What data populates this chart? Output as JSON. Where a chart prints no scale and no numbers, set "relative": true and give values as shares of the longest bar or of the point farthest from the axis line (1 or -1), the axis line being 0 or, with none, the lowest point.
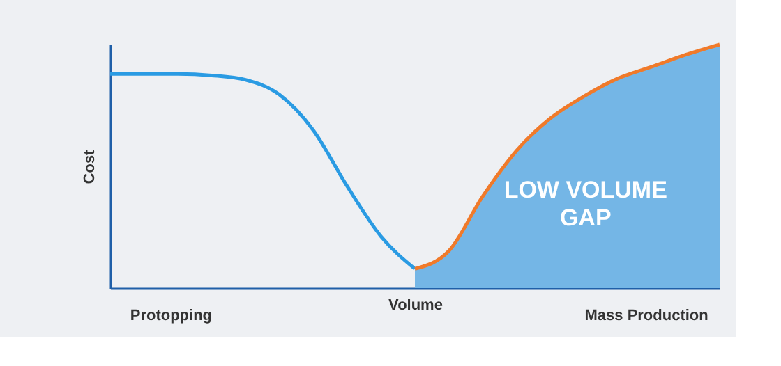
{
  "chart_data": {
    "type": "line",
    "relative": true,
    "xlabel": "Volume",
    "ylabel": "Cost",
    "tick_labels": false,
    "grid": false,
    "categories": [
      null,
      null,
      null,
      null,
      null,
      null,
      null,
      null,
      null,
      null,
      null,
      null,
      null,
      null,
      null,
      null,
      null,
      null,
      null
    ],
    "series": [
      {
        "type": "area",
        "color": "#74b6e6",
        "values": [
          null,
          null,
          null,
          null,
          null,
          null,
          null,
          null,
          null,
          0.079,
          0.152,
          0.376,
          0.564,
          0.697,
          0.788,
          0.861,
          0.909,
          0.958,
          1.0
        ]
      },
      {
        "color": "#2a9be3",
        "values": [
          0.879,
          0.879,
          0.879,
          0.873,
          0.855,
          0.794,
          0.648,
          0.418,
          0.212,
          0.079,
          null,
          null,
          null,
          null,
          null,
          null,
          null,
          null,
          null
        ]
      },
      {
        "color": "#f07a2a",
        "values": [
          null,
          null,
          null,
          null,
          null,
          null,
          null,
          null,
          null,
          0.079,
          0.152,
          0.376,
          0.564,
          0.697,
          0.788,
          0.861,
          0.909,
          0.958,
          1.0
        ]
      }
    ],
    "annotations": [
      "Protopping",
      "Mass Production",
      "LOW VOLUME GAP"
    ]
  }
}
